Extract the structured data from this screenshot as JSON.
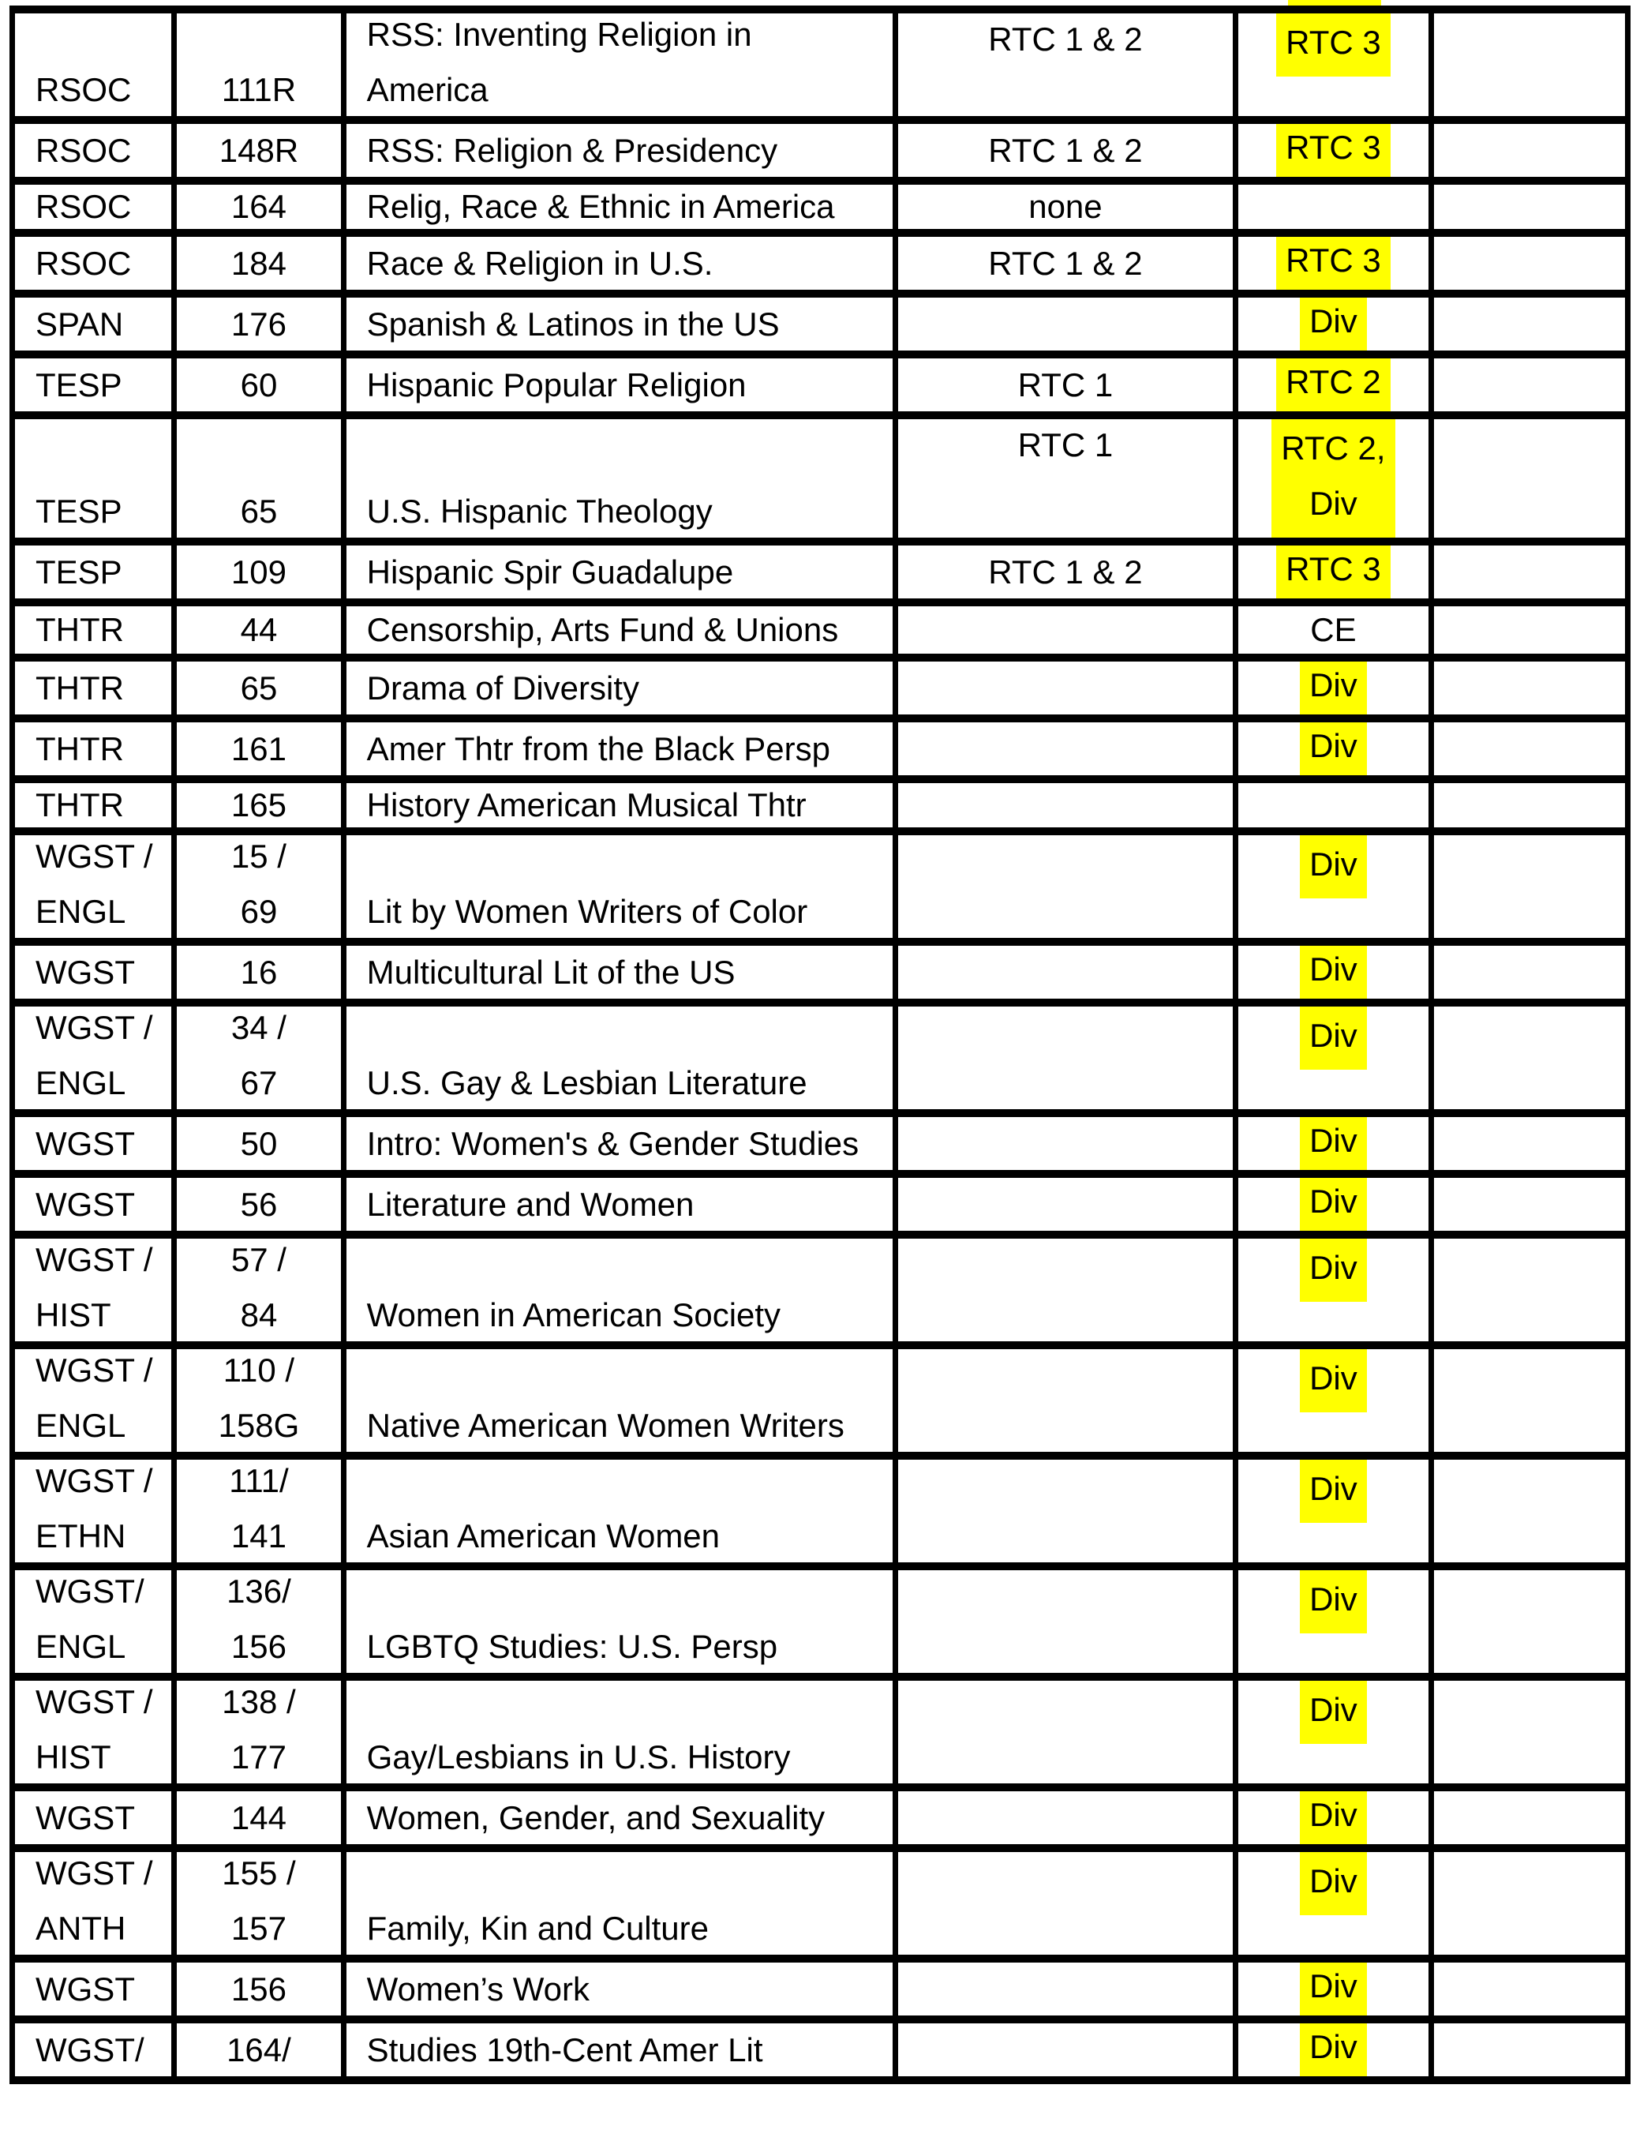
{
  "document": {
    "background_color": "#FFFFFF",
    "text_color": "#000000",
    "border_color": "#000000",
    "highlight_color": "#FFFF00"
  },
  "table": {
    "rows": [
      {
        "dept": [
          "RSOC"
        ],
        "num": [
          "111R"
        ],
        "title": [
          "RSS: Inventing Religion in",
          "America"
        ],
        "req_current": "RTC 1 & 2",
        "req_new": [
          "RTC 3"
        ],
        "highlight": true,
        "size": "tall"
      },
      {
        "dept": [
          "RSOC"
        ],
        "num": [
          "148R"
        ],
        "title": [
          "RSS: Religion & Presidency"
        ],
        "req_current": "RTC 1 & 2",
        "req_new": [
          "RTC 3"
        ],
        "highlight": true,
        "size": "n"
      },
      {
        "dept": [
          "RSOC"
        ],
        "num": [
          "164"
        ],
        "title": [
          "Relig, Race & Ethnic in America"
        ],
        "req_current": "none",
        "req_new": [],
        "highlight": false,
        "size": "n"
      },
      {
        "dept": [
          "RSOC"
        ],
        "num": [
          "184"
        ],
        "title": [
          "Race & Religion in U.S."
        ],
        "req_current": "RTC 1 & 2",
        "req_new": [
          "RTC 3"
        ],
        "highlight": true,
        "size": "n"
      },
      {
        "dept": [
          "SPAN"
        ],
        "num": [
          "176"
        ],
        "title": [
          "Spanish & Latinos in the US"
        ],
        "req_current": "",
        "req_new": [
          "Div"
        ],
        "highlight": true,
        "size": "n"
      },
      {
        "dept": [
          "TESP"
        ],
        "num": [
          "60"
        ],
        "title": [
          "Hispanic Popular Religion"
        ],
        "req_current": "RTC 1",
        "req_new": [
          "RTC 2"
        ],
        "highlight": true,
        "size": "n"
      },
      {
        "dept": [
          "TESP"
        ],
        "num": [
          "65"
        ],
        "title": [
          "U.S. Hispanic Theology"
        ],
        "req_current": "RTC 1",
        "req_new": [
          "RTC 2,",
          "Div"
        ],
        "highlight": true,
        "size": "tall"
      },
      {
        "dept": [
          "TESP"
        ],
        "num": [
          "109"
        ],
        "title": [
          "Hispanic Spir Guadalupe"
        ],
        "req_current": "RTC 1 & 2",
        "req_new": [
          "RTC 3"
        ],
        "highlight": true,
        "size": "n"
      },
      {
        "dept": [
          "THTR"
        ],
        "num": [
          "44"
        ],
        "title": [
          "Censorship, Arts Fund & Unions"
        ],
        "req_current": "",
        "req_new": [
          "CE"
        ],
        "highlight": false,
        "size": "n"
      },
      {
        "dept": [
          "THTR"
        ],
        "num": [
          "65"
        ],
        "title": [
          "Drama of Diversity"
        ],
        "req_current": "",
        "req_new": [
          "Div"
        ],
        "highlight": true,
        "size": "n"
      },
      {
        "dept": [
          "THTR"
        ],
        "num": [
          "161"
        ],
        "title": [
          "Amer Thtr from the Black Persp"
        ],
        "req_current": "",
        "req_new": [
          "Div"
        ],
        "highlight": true,
        "size": "n"
      },
      {
        "dept": [
          "THTR"
        ],
        "num": [
          "165"
        ],
        "title": [
          "History American Musical Thtr"
        ],
        "req_current": "",
        "req_new": [],
        "highlight": false,
        "size": "n"
      },
      {
        "dept": [
          "WGST /",
          "ENGL"
        ],
        "num": [
          "15 /",
          "69"
        ],
        "title": [
          "Lit by Women Writers of Color"
        ],
        "req_current": "",
        "req_new": [
          "Div"
        ],
        "highlight": true,
        "size": "tall"
      },
      {
        "dept": [
          "WGST"
        ],
        "num": [
          "16"
        ],
        "title": [
          "Multicultural Lit of the US"
        ],
        "req_current": "",
        "req_new": [
          "Div"
        ],
        "highlight": true,
        "size": "n"
      },
      {
        "dept": [
          "WGST /",
          "ENGL"
        ],
        "num": [
          "34 /",
          "67"
        ],
        "title": [
          "U.S. Gay & Lesbian Literature"
        ],
        "req_current": "",
        "req_new": [
          "Div"
        ],
        "highlight": true,
        "size": "tall"
      },
      {
        "dept": [
          "WGST"
        ],
        "num": [
          "50"
        ],
        "title": [
          "Intro: Women's & Gender Studies"
        ],
        "req_current": "",
        "req_new": [
          "Div"
        ],
        "highlight": true,
        "size": "n"
      },
      {
        "dept": [
          "WGST"
        ],
        "num": [
          "56"
        ],
        "title": [
          "Literature and Women"
        ],
        "req_current": "",
        "req_new": [
          "Div"
        ],
        "highlight": true,
        "size": "n"
      },
      {
        "dept": [
          "WGST /",
          "HIST"
        ],
        "num": [
          "57 /",
          "84"
        ],
        "title": [
          "Women in American Society"
        ],
        "req_current": "",
        "req_new": [
          "Div"
        ],
        "highlight": true,
        "size": "tall"
      },
      {
        "dept": [
          "WGST /",
          "ENGL"
        ],
        "num": [
          "110 /",
          "158G"
        ],
        "title": [
          "Native American Women Writers"
        ],
        "req_current": "",
        "req_new": [
          "Div"
        ],
        "highlight": true,
        "size": "tall"
      },
      {
        "dept": [
          "WGST /",
          "ETHN"
        ],
        "num": [
          "111/",
          "141"
        ],
        "title": [
          "Asian American Women"
        ],
        "req_current": "",
        "req_new": [
          "Div"
        ],
        "highlight": true,
        "size": "tall"
      },
      {
        "dept": [
          "WGST/",
          "ENGL"
        ],
        "num": [
          "136/",
          "156"
        ],
        "title": [
          "LGBTQ Studies: U.S. Persp"
        ],
        "req_current": "",
        "req_new": [
          "Div"
        ],
        "highlight": true,
        "size": "tall"
      },
      {
        "dept": [
          "WGST /",
          "HIST"
        ],
        "num": [
          "138 /",
          "177"
        ],
        "title": [
          "Gay/Lesbians in U.S. History"
        ],
        "req_current": "",
        "req_new": [
          "Div"
        ],
        "highlight": true,
        "size": "tall"
      },
      {
        "dept": [
          "WGST"
        ],
        "num": [
          "144"
        ],
        "title": [
          "Women, Gender, and Sexuality"
        ],
        "req_current": "",
        "req_new": [
          "Div"
        ],
        "highlight": true,
        "size": "n"
      },
      {
        "dept": [
          "WGST /",
          "ANTH"
        ],
        "num": [
          "155 /",
          "157"
        ],
        "title": [
          "Family, Kin and Culture"
        ],
        "req_current": "",
        "req_new": [
          "Div"
        ],
        "highlight": true,
        "size": "tall"
      },
      {
        "dept": [
          "WGST"
        ],
        "num": [
          "156"
        ],
        "title": [
          "Women’s Work"
        ],
        "req_current": "",
        "req_new": [
          "Div"
        ],
        "highlight": true,
        "size": "n"
      },
      {
        "dept": [
          "WGST/"
        ],
        "num": [
          "164/"
        ],
        "title": [
          "Studies 19th-Cent Amer Lit"
        ],
        "req_current": "",
        "req_new": [
          "Div"
        ],
        "highlight": true,
        "size": "n"
      }
    ]
  }
}
